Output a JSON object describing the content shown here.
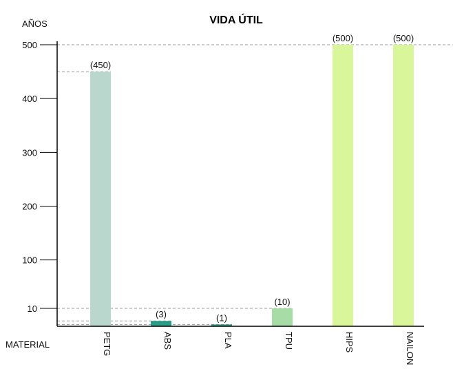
{
  "chart_data": {
    "type": "bar",
    "title": "VIDA ÚTIL",
    "ylabel": "AÑOS",
    "xlabel": "MATERIAL",
    "categories": [
      "PETG",
      "ABS",
      "PLA",
      "TPU",
      "HIPS",
      "NAILON"
    ],
    "values": [
      450,
      3,
      1,
      10,
      500,
      500
    ],
    "data_labels": [
      "(450)",
      "(3)",
      "(1)",
      "(10)",
      "(500)",
      "(500)"
    ],
    "colors": [
      "#bad7ce",
      "#2a9d86",
      "#2a9d86",
      "#a7dca6",
      "#d9f79a",
      "#d9f79a"
    ],
    "y_ticks": [
      {
        "value": 10,
        "label": "10"
      },
      {
        "value": 100,
        "label": "100"
      },
      {
        "value": 200,
        "label": "200"
      },
      {
        "value": 300,
        "label": "300"
      },
      {
        "value": 400,
        "label": "400"
      },
      {
        "value": 500,
        "label": "500"
      }
    ],
    "ylim": [
      0,
      500
    ],
    "scale_note": "non-linear axis: 0–10 compressed, 10–500 linear",
    "grid": false,
    "reference_lines": "dashed",
    "legend": "none"
  }
}
